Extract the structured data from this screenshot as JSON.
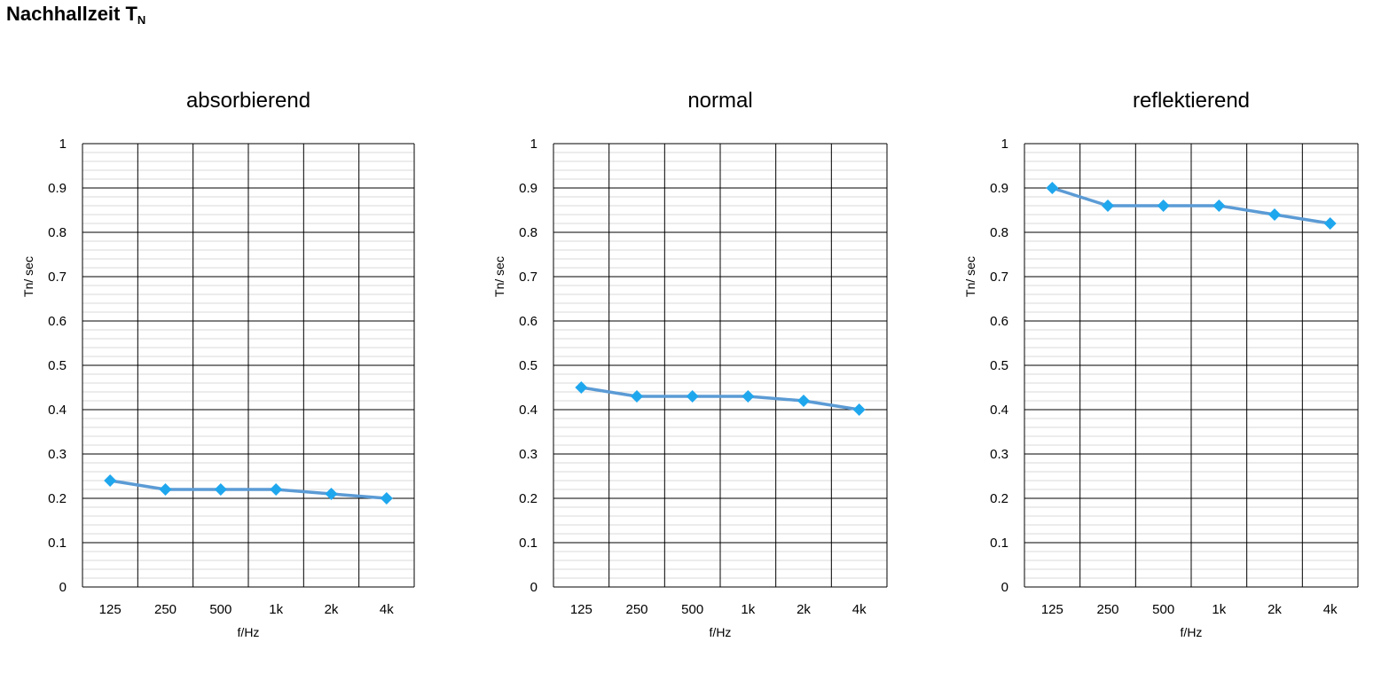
{
  "page": {
    "title_main": "Nachhallzeit T",
    "title_sub": "N"
  },
  "colors": {
    "line": "#5b9bd5",
    "marker": "#1fa7ee",
    "major_grid": "#000000",
    "minor_grid": "#d9d9d9"
  },
  "chart_data": [
    {
      "type": "line",
      "title": "absorbierend",
      "xlabel": "f/Hz",
      "ylabel": "Tn/ sec",
      "categories": [
        "125",
        "250",
        "500",
        "1k",
        "2k",
        "4k"
      ],
      "ylim": [
        0,
        1
      ],
      "yticks": [
        "0",
        "0.1",
        "0.2",
        "0.3",
        "0.4",
        "0.5",
        "0.6",
        "0.7",
        "0.8",
        "0.9",
        "1"
      ],
      "grid": true,
      "series": [
        {
          "values": [
            0.24,
            0.22,
            0.22,
            0.22,
            0.21,
            0.2
          ]
        }
      ]
    },
    {
      "type": "line",
      "title": "normal",
      "xlabel": "f/Hz",
      "ylabel": "Tn/ sec",
      "categories": [
        "125",
        "250",
        "500",
        "1k",
        "2k",
        "4k"
      ],
      "ylim": [
        0,
        1
      ],
      "yticks": [
        "0",
        "0.1",
        "0.2",
        "0.3",
        "0.4",
        "0.5",
        "0.6",
        "0.7",
        "0.8",
        "0.9",
        "1"
      ],
      "grid": true,
      "series": [
        {
          "values": [
            0.45,
            0.43,
            0.43,
            0.43,
            0.42,
            0.4
          ]
        }
      ]
    },
    {
      "type": "line",
      "title": "reflektierend",
      "xlabel": "f/Hz",
      "ylabel": "Tn/ sec",
      "categories": [
        "125",
        "250",
        "500",
        "1k",
        "2k",
        "4k"
      ],
      "ylim": [
        0,
        1
      ],
      "yticks": [
        "0",
        "0.1",
        "0.2",
        "0.3",
        "0.4",
        "0.5",
        "0.6",
        "0.7",
        "0.8",
        "0.9",
        "1"
      ],
      "grid": true,
      "series": [
        {
          "values": [
            0.9,
            0.86,
            0.86,
            0.86,
            0.84,
            0.82
          ]
        }
      ]
    }
  ]
}
